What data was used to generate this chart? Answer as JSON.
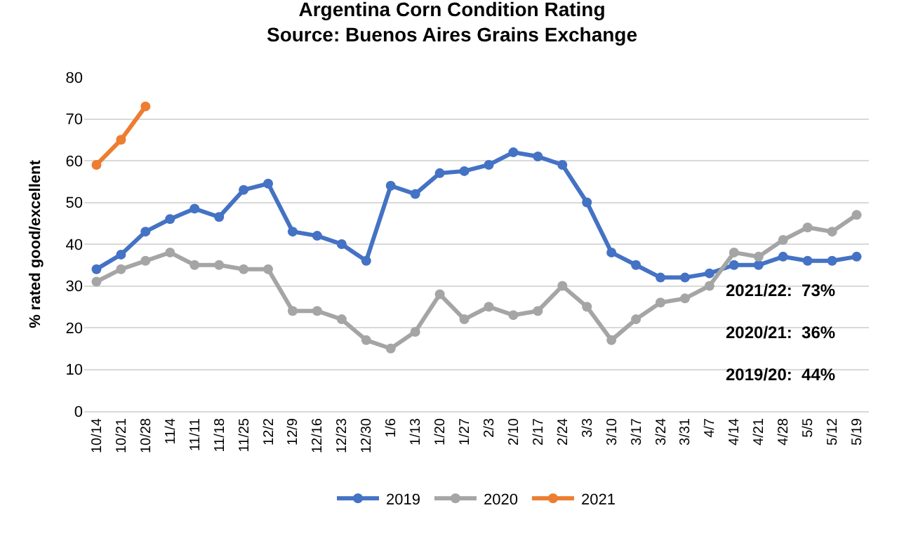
{
  "chart_data": {
    "type": "line",
    "title": "Argentina Corn Condition Rating",
    "subtitle": "Source: Buenos Aires Grains Exchange",
    "ylabel": "% rated good/excellent",
    "categories": [
      "10/14",
      "10/21",
      "10/28",
      "11/4",
      "11/11",
      "11/18",
      "11/25",
      "12/2",
      "12/9",
      "12/16",
      "12/23",
      "12/30",
      "1/6",
      "1/13",
      "1/20",
      "1/27",
      "2/3",
      "2/10",
      "2/17",
      "2/24",
      "3/3",
      "3/10",
      "3/17",
      "3/24",
      "3/31",
      "4/7",
      "4/14",
      "4/21",
      "4/28",
      "5/5",
      "5/12",
      "5/19"
    ],
    "series": [
      {
        "name": "2019",
        "color": "#4472c4",
        "values": [
          34,
          37.5,
          43,
          46,
          48.5,
          46.5,
          53,
          54.5,
          43,
          42,
          40,
          36,
          54,
          52,
          57,
          57.5,
          59,
          62,
          61,
          59,
          50,
          38,
          35,
          32,
          32,
          33,
          35,
          35,
          37,
          36,
          36,
          37
        ]
      },
      {
        "name": "2020",
        "color": "#a5a5a5",
        "values": [
          31,
          34,
          36,
          38,
          35,
          35,
          34,
          34,
          24,
          24,
          22,
          17,
          15,
          19,
          28,
          22,
          25,
          23,
          24,
          30,
          25,
          17,
          22,
          26,
          27,
          30,
          38,
          37,
          41,
          44,
          43,
          47
        ]
      },
      {
        "name": "2021",
        "color": "#ed7d31",
        "values": [
          59,
          65,
          73,
          null,
          null,
          null,
          null,
          null,
          null,
          null,
          null,
          null,
          null,
          null,
          null,
          null,
          null,
          null,
          null,
          null,
          null,
          null,
          null,
          null,
          null,
          null,
          null,
          null,
          null,
          null,
          null,
          null
        ]
      }
    ],
    "ylim": [
      0,
      80
    ],
    "yticks": [
      0,
      10,
      20,
      30,
      40,
      50,
      60,
      70,
      80
    ],
    "grid": "y",
    "legend": "bottom",
    "marker": "circle",
    "line_style": "solid",
    "annotations": [
      "2021/22:  73%",
      "2020/21:  36%",
      "2019/20:  44%"
    ]
  }
}
